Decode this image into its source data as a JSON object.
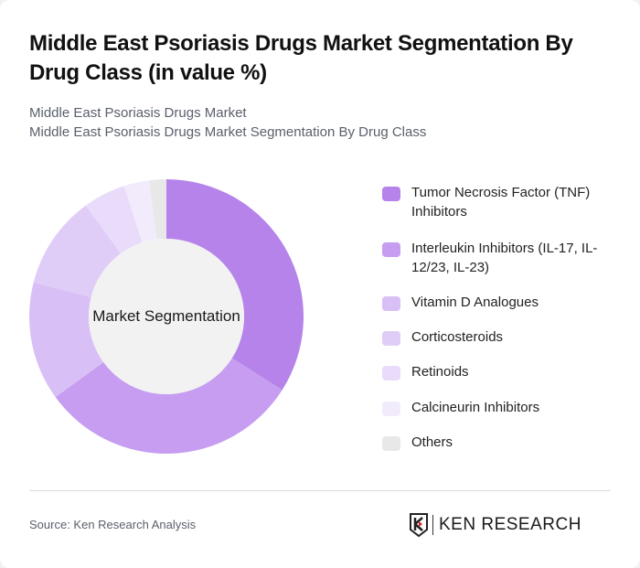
{
  "header": {
    "title": "Middle East Psoriasis Drugs Market Segmentation By Drug Class (in value %)",
    "subtitle_line1": "Middle East Psoriasis Drugs Market",
    "subtitle_line2": "Middle East Psoriasis Drugs Market Segmentation By Drug Class"
  },
  "chart": {
    "center_label": "Market Segmentation"
  },
  "legend": [
    {
      "label": "Tumor Necrosis Factor (TNF) Inhibitors",
      "color": "#b583ea"
    },
    {
      "label": "Interleukin Inhibitors (IL-17, IL-12/23, IL-23)",
      "color": "#c69df0"
    },
    {
      "label": "Vitamin D Analogues",
      "color": "#d8c0f6"
    },
    {
      "label": "Corticosteroids",
      "color": "#e0cdf7"
    },
    {
      "label": "Retinoids",
      "color": "#e9dbfa"
    },
    {
      "label": "Calcineurin Inhibitors",
      "color": "#f2ebfc"
    },
    {
      "label": "Others",
      "color": "#e8e8e8"
    }
  ],
  "footer": {
    "source": "Source: Ken Research Analysis",
    "logo_text": "KEN RESEARCH"
  },
  "chart_data": {
    "type": "pie",
    "subtype": "donut",
    "title": "Middle East Psoriasis Drugs Market Segmentation By Drug Class (in value %)",
    "center_label": "Market Segmentation",
    "categories": [
      "Tumor Necrosis Factor (TNF) Inhibitors",
      "Interleukin Inhibitors (IL-17, IL-12/23, IL-23)",
      "Vitamin D Analogues",
      "Corticosteroids",
      "Retinoids",
      "Calcineurin Inhibitors",
      "Others"
    ],
    "values": [
      34,
      31,
      14,
      11,
      5,
      3,
      2
    ],
    "colors": [
      "#b583ea",
      "#c69df0",
      "#d8c0f6",
      "#e0cdf7",
      "#e9dbfa",
      "#f2ebfc",
      "#e8e8e8"
    ],
    "legend_position": "right",
    "start_angle": "top, clockwise"
  }
}
